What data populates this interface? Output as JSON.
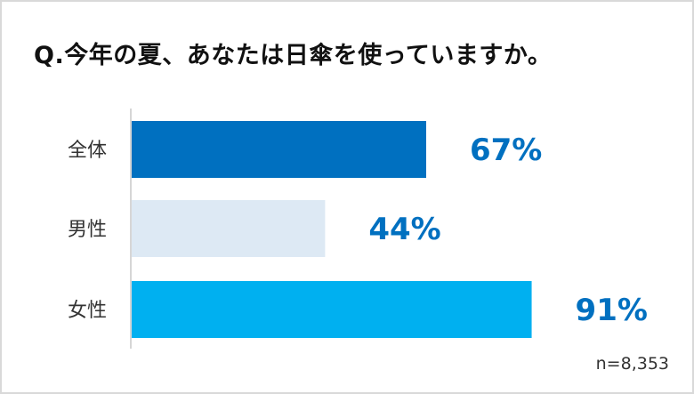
{
  "title": "Q.今年の夏、あなたは日傘を使っていますか。",
  "note": "n=8,353",
  "chart_data": {
    "type": "bar",
    "orientation": "horizontal",
    "title": "Q.今年の夏、あなたは日傘を使っていますか。",
    "categories": [
      "全体",
      "男性",
      "女性"
    ],
    "values": [
      67,
      44,
      91
    ],
    "value_labels": [
      "67%",
      "44%",
      "91%"
    ],
    "colors": [
      "#0070c0",
      "#dde9f4",
      "#00b0f0"
    ],
    "label_color": "#0070c0",
    "unit": "%",
    "xlim": [
      0,
      100
    ],
    "grid": false,
    "legend": "none",
    "sample_note": "n=8,353"
  }
}
